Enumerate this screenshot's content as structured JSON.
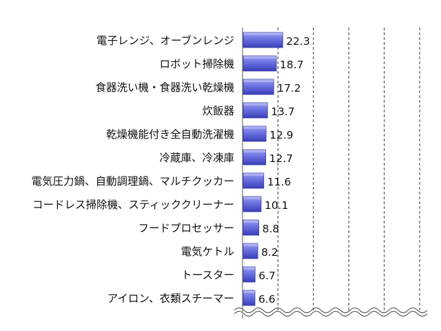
{
  "chart_data": {
    "type": "bar",
    "orientation": "horizontal",
    "title": "",
    "xlabel": "",
    "ylabel": "",
    "categories": [
      "電子レンジ、オーブンレンジ",
      "ロボット掃除機",
      "食器洗い機・食器洗い乾燥機",
      "炊飯器",
      "乾燥機能付き全自動洗濯機",
      "冷蔵庫、冷凍庫",
      "電気圧力鍋、自動調理鍋、マルチクッカー",
      "コードレス掃除機、スティッククリーナー",
      "フードプロセッサー",
      "電気ケトル",
      "トースター",
      "アイロン、衣類スチーマー"
    ],
    "values": [
      22.3,
      18.7,
      17.2,
      13.7,
      12.9,
      12.7,
      11.6,
      10.1,
      8.8,
      8.2,
      6.7,
      6.6
    ],
    "xlim": [
      0,
      100
    ],
    "grid": true,
    "axis_break": true,
    "bar_color": "#5a5fd6",
    "bar_edge_color": "#2e33a8"
  }
}
